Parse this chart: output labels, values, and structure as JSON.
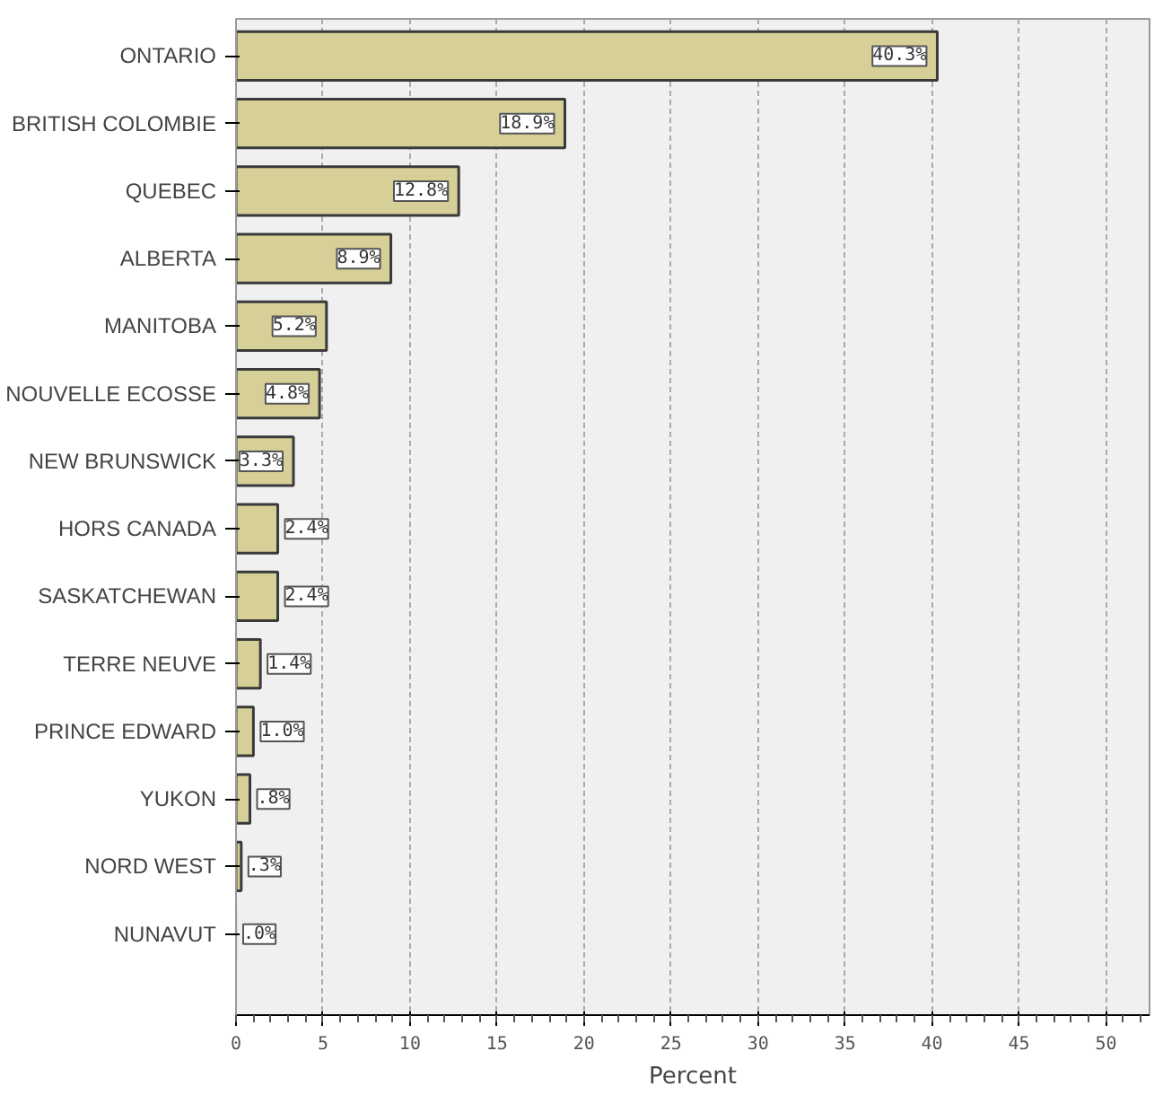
{
  "chart_data": {
    "type": "bar",
    "orientation": "horizontal",
    "xlabel": "Percent",
    "categories": [
      "ONTARIO",
      "BRITISH COLOMBIE",
      "QUEBEC",
      "ALBERTA",
      "MANITOBA",
      "NOUVELLE ECOSSE",
      "NEW BRUNSWICK",
      "HORS CANADA",
      "SASKATCHEWAN",
      "TERRE NEUVE",
      "PRINCE EDWARD",
      "YUKON",
      "NORD WEST",
      "NUNAVUT"
    ],
    "values": [
      40.3,
      18.9,
      12.8,
      8.9,
      5.2,
      4.8,
      3.3,
      2.4,
      2.4,
      1.4,
      1.0,
      0.8,
      0.3,
      0.0
    ],
    "value_labels": [
      "40.3%",
      "18.9%",
      "12.8%",
      "8.9%",
      "5.2%",
      "4.8%",
      "3.3%",
      "2.4%",
      "2.4%",
      "1.4%",
      "1.0%",
      ".8%",
      ".3%",
      ".0%"
    ],
    "color": "#d6cf98",
    "xlim": [
      0,
      52.5
    ],
    "xticks": [
      0,
      5,
      10,
      15,
      20,
      25,
      30,
      35,
      40,
      45,
      50
    ],
    "grid": "x"
  }
}
